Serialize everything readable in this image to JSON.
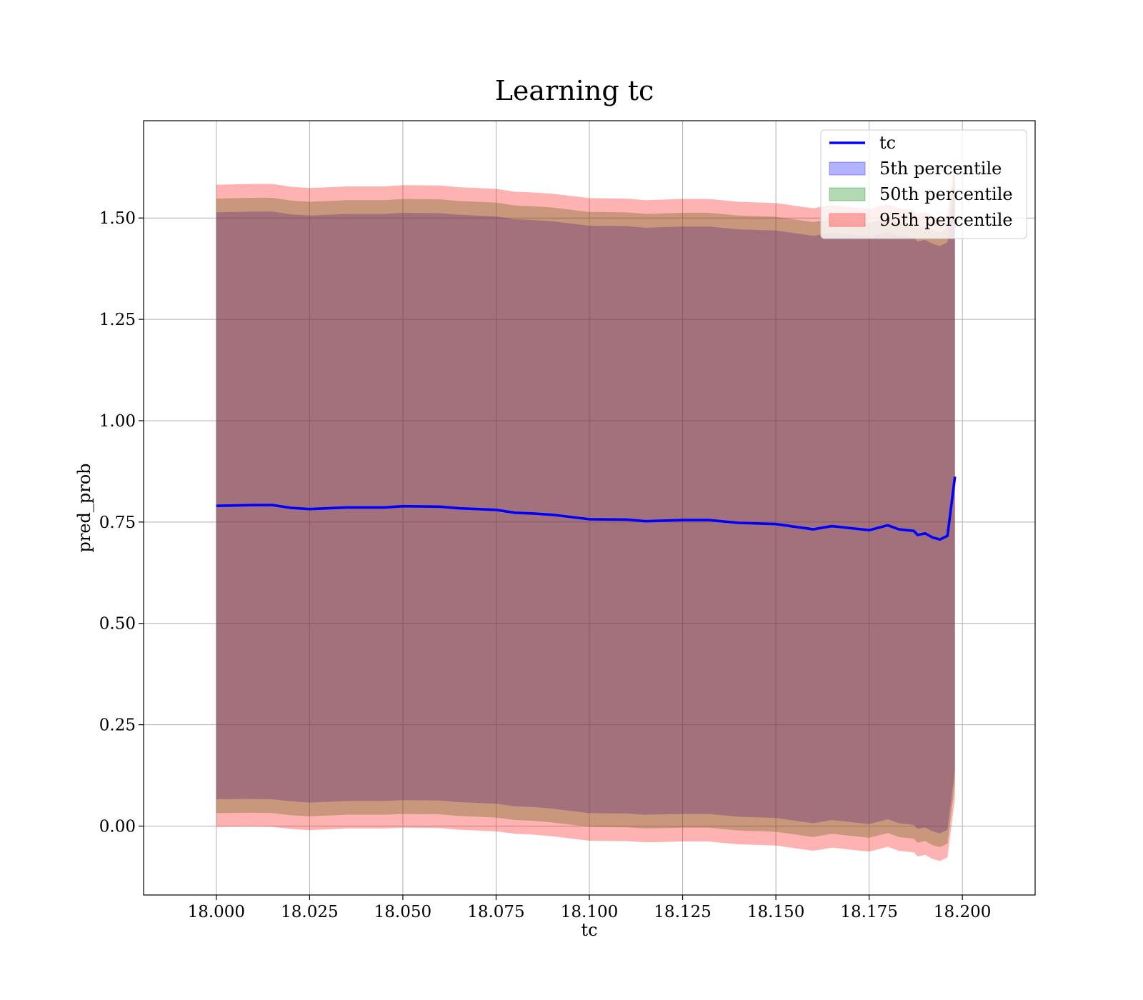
{
  "chart_data": {
    "type": "area",
    "title": "Learning tc",
    "xlabel": "tc",
    "ylabel": "pred_prob",
    "xlim": [
      17.9805,
      18.2195
    ],
    "ylim": [
      -0.17,
      1.74
    ],
    "grid": true,
    "legend_position": "top-right",
    "xticks": [
      18.0,
      18.025,
      18.05,
      18.075,
      18.1,
      18.125,
      18.15,
      18.175,
      18.2
    ],
    "xtick_labels": [
      "18.000",
      "18.025",
      "18.050",
      "18.075",
      "18.100",
      "18.125",
      "18.150",
      "18.175",
      "18.200"
    ],
    "yticks": [
      0.0,
      0.25,
      0.5,
      0.75,
      1.0,
      1.25,
      1.5
    ],
    "ytick_labels": [
      "0.00",
      "0.25",
      "0.50",
      "0.75",
      "1.00",
      "1.25",
      "1.50"
    ],
    "x": [
      18.0,
      18.01,
      18.015,
      18.02,
      18.025,
      18.035,
      18.045,
      18.05,
      18.06,
      18.065,
      18.075,
      18.08,
      18.085,
      18.09,
      18.1,
      18.11,
      18.115,
      18.125,
      18.132,
      18.14,
      18.15,
      18.16,
      18.165,
      18.17,
      18.175,
      18.18,
      18.183,
      18.187,
      18.188,
      18.19,
      18.192,
      18.194,
      18.196,
      18.198
    ],
    "line": {
      "name": "tc",
      "color": "#0000ff",
      "values": [
        0.79,
        0.792,
        0.792,
        0.785,
        0.782,
        0.786,
        0.786,
        0.789,
        0.788,
        0.784,
        0.78,
        0.773,
        0.771,
        0.768,
        0.757,
        0.756,
        0.752,
        0.755,
        0.755,
        0.748,
        0.745,
        0.732,
        0.74,
        0.735,
        0.73,
        0.742,
        0.732,
        0.728,
        0.718,
        0.722,
        0.712,
        0.707,
        0.716,
        0.862
      ]
    },
    "bands": [
      {
        "name": "5th percentile",
        "color": "#0000ff",
        "opacity": 0.3,
        "lower": [
          0.066,
          0.067,
          0.066,
          0.061,
          0.058,
          0.062,
          0.062,
          0.064,
          0.063,
          0.059,
          0.055,
          0.049,
          0.047,
          0.043,
          0.032,
          0.031,
          0.028,
          0.03,
          0.03,
          0.023,
          0.02,
          0.007,
          0.015,
          0.01,
          0.005,
          0.017,
          0.007,
          0.003,
          -0.007,
          -0.003,
          -0.013,
          -0.018,
          -0.009,
          0.137
        ],
        "upper": [
          1.514,
          1.516,
          1.516,
          1.509,
          1.506,
          1.51,
          1.51,
          1.513,
          1.512,
          1.508,
          1.504,
          1.497,
          1.495,
          1.492,
          1.481,
          1.48,
          1.476,
          1.479,
          1.479,
          1.472,
          1.469,
          1.456,
          1.464,
          1.459,
          1.454,
          1.466,
          1.456,
          1.452,
          1.442,
          1.446,
          1.436,
          1.431,
          1.44,
          1.586
        ]
      },
      {
        "name": "50th percentile",
        "color": "#008000",
        "opacity": 0.3,
        "lower": [
          0.032,
          0.033,
          0.032,
          0.027,
          0.024,
          0.028,
          0.028,
          0.03,
          0.029,
          0.025,
          0.021,
          0.015,
          0.013,
          0.009,
          -0.002,
          -0.003,
          -0.006,
          -0.004,
          -0.004,
          -0.011,
          -0.014,
          -0.027,
          -0.019,
          -0.024,
          -0.029,
          -0.017,
          -0.027,
          -0.031,
          -0.041,
          -0.037,
          -0.047,
          -0.052,
          -0.043,
          0.103
        ],
        "upper": [
          1.548,
          1.55,
          1.55,
          1.543,
          1.54,
          1.544,
          1.544,
          1.547,
          1.546,
          1.542,
          1.538,
          1.531,
          1.529,
          1.526,
          1.515,
          1.514,
          1.51,
          1.513,
          1.513,
          1.506,
          1.503,
          1.49,
          1.498,
          1.493,
          1.488,
          1.5,
          1.49,
          1.486,
          1.476,
          1.48,
          1.47,
          1.465,
          1.474,
          1.62
        ]
      },
      {
        "name": "95th percentile",
        "color": "#ff0000",
        "opacity": 0.3,
        "lower": [
          -0.002,
          -0.001,
          -0.002,
          -0.007,
          -0.01,
          -0.006,
          -0.006,
          -0.004,
          -0.005,
          -0.009,
          -0.013,
          -0.019,
          -0.021,
          -0.025,
          -0.036,
          -0.037,
          -0.04,
          -0.038,
          -0.038,
          -0.045,
          -0.048,
          -0.061,
          -0.053,
          -0.058,
          -0.063,
          -0.051,
          -0.061,
          -0.065,
          -0.075,
          -0.071,
          -0.081,
          -0.086,
          -0.077,
          0.069
        ],
        "upper": [
          1.582,
          1.584,
          1.584,
          1.577,
          1.574,
          1.578,
          1.578,
          1.581,
          1.58,
          1.576,
          1.572,
          1.565,
          1.563,
          1.56,
          1.549,
          1.548,
          1.544,
          1.547,
          1.547,
          1.54,
          1.537,
          1.524,
          1.532,
          1.527,
          1.522,
          1.534,
          1.524,
          1.52,
          1.51,
          1.514,
          1.504,
          1.499,
          1.508,
          1.654
        ]
      }
    ]
  }
}
